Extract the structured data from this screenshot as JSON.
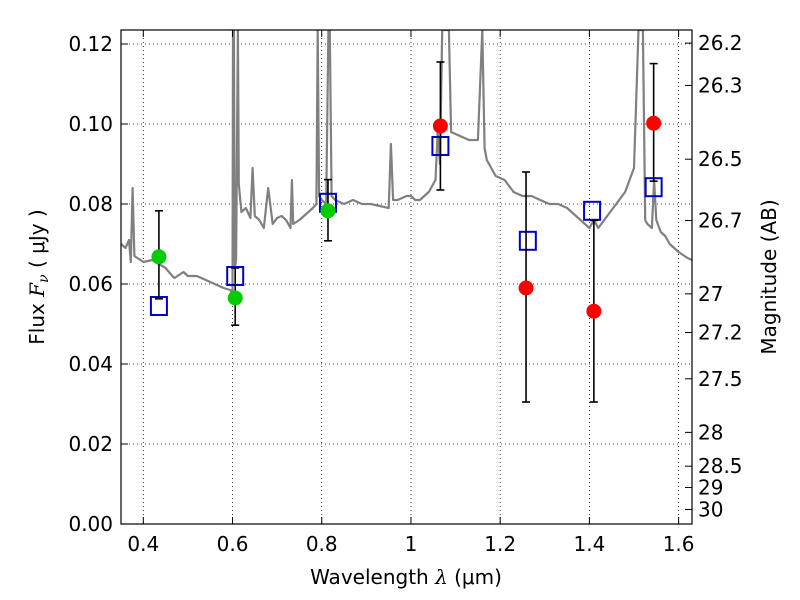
{
  "chart_data": {
    "type": "scatter",
    "xlabel": "Wavelength  λ (μm)",
    "ylabel": "Flux  F_ν  ( μJy )",
    "ylabel_parts": {
      "prefix": "Flux  ",
      "symbol": "F",
      "subscript": "ν",
      "suffix": "  ( μJy )"
    },
    "xlabel_parts": {
      "prefix": "Wavelength  ",
      "symbol": "λ",
      "suffix": " (μm)"
    },
    "y2label": "Magnitude (AB)",
    "xlim": [
      0.35,
      1.63
    ],
    "ylim": [
      0.0,
      0.1235
    ],
    "grid": true,
    "x_ticks": [
      "0.4",
      "0.6",
      "0.8",
      "1",
      "1.2",
      "1.4",
      "1.6"
    ],
    "y_ticks": [
      "0.00",
      "0.02",
      "0.04",
      "0.06",
      "0.08",
      "0.10",
      "0.12"
    ],
    "mag_ticks": [
      "26.2",
      "26.3",
      "26.5",
      "26.7",
      "27",
      "27.2",
      "27.5",
      "28",
      "28.5",
      "29",
      "30"
    ],
    "colors": {
      "green": "#00cc00",
      "red": "#ff0000",
      "model_marker": "#0000cc",
      "spectrum": "#808080",
      "errorbar": "#000000"
    },
    "observed": [
      {
        "x": 0.435,
        "y": 0.0668,
        "err_lo": 0.0105,
        "err_hi": 0.0115,
        "color": "green"
      },
      {
        "x": 0.606,
        "y": 0.0565,
        "err_lo": 0.0068,
        "err_hi": 0.0075,
        "color": "green"
      },
      {
        "x": 0.814,
        "y": 0.0783,
        "err_lo": 0.0075,
        "err_hi": 0.0078,
        "color": "green"
      },
      {
        "x": 1.066,
        "y": 0.0995,
        "err_lo": 0.016,
        "err_hi": 0.016,
        "color": "red"
      },
      {
        "x": 1.258,
        "y": 0.059,
        "err_lo": 0.0285,
        "err_hi": 0.029,
        "color": "red"
      },
      {
        "x": 1.41,
        "y": 0.0532,
        "err_lo": 0.0227,
        "err_hi": 0.0227,
        "color": "red"
      },
      {
        "x": 1.544,
        "y": 0.1002,
        "err_lo": 0.0145,
        "err_hi": 0.0149,
        "color": "red"
      }
    ],
    "model_points": [
      {
        "x": 0.435,
        "y": 0.0545
      },
      {
        "x": 0.606,
        "y": 0.062
      },
      {
        "x": 0.814,
        "y": 0.0803
      },
      {
        "x": 1.066,
        "y": 0.0945
      },
      {
        "x": 1.262,
        "y": 0.0708
      },
      {
        "x": 1.406,
        "y": 0.0783
      },
      {
        "x": 1.544,
        "y": 0.0842
      }
    ],
    "spectrum": [
      [
        0.35,
        0.07
      ],
      [
        0.36,
        0.069
      ],
      [
        0.368,
        0.071
      ],
      [
        0.372,
        0.0655
      ],
      [
        0.376,
        0.084
      ],
      [
        0.38,
        0.067
      ],
      [
        0.4,
        0.0655
      ],
      [
        0.42,
        0.066
      ],
      [
        0.435,
        0.065
      ],
      [
        0.45,
        0.064
      ],
      [
        0.465,
        0.062
      ],
      [
        0.47,
        0.0615
      ],
      [
        0.49,
        0.063
      ],
      [
        0.5,
        0.062
      ],
      [
        0.52,
        0.062
      ],
      [
        0.54,
        0.061
      ],
      [
        0.56,
        0.06
      ],
      [
        0.58,
        0.059
      ],
      [
        0.595,
        0.0585
      ],
      [
        0.6,
        0.0575
      ],
      [
        0.601,
        0.1235
      ],
      [
        0.603,
        0.1235
      ],
      [
        0.605,
        0.064
      ],
      [
        0.608,
        0.066
      ],
      [
        0.612,
        0.1235
      ],
      [
        0.614,
        0.085
      ],
      [
        0.62,
        0.078
      ],
      [
        0.63,
        0.079
      ],
      [
        0.64,
        0.0765
      ],
      [
        0.645,
        0.089
      ],
      [
        0.65,
        0.077
      ],
      [
        0.66,
        0.076
      ],
      [
        0.67,
        0.074
      ],
      [
        0.68,
        0.084
      ],
      [
        0.69,
        0.075
      ],
      [
        0.7,
        0.0765
      ],
      [
        0.71,
        0.077
      ],
      [
        0.72,
        0.076
      ],
      [
        0.73,
        0.074
      ],
      [
        0.733,
        0.086
      ],
      [
        0.736,
        0.075
      ],
      [
        0.75,
        0.076
      ],
      [
        0.76,
        0.077
      ],
      [
        0.77,
        0.078
      ],
      [
        0.78,
        0.079
      ],
      [
        0.788,
        0.08
      ],
      [
        0.791,
        0.1235
      ],
      [
        0.794,
        0.082
      ],
      [
        0.8,
        0.081
      ],
      [
        0.81,
        0.08
      ],
      [
        0.815,
        0.1235
      ],
      [
        0.818,
        0.1235
      ],
      [
        0.822,
        0.082
      ],
      [
        0.83,
        0.081
      ],
      [
        0.85,
        0.08
      ],
      [
        0.87,
        0.081
      ],
      [
        0.89,
        0.08
      ],
      [
        0.91,
        0.08
      ],
      [
        0.93,
        0.0795
      ],
      [
        0.95,
        0.079
      ],
      [
        0.955,
        0.095
      ],
      [
        0.96,
        0.081
      ],
      [
        0.97,
        0.081
      ],
      [
        0.99,
        0.082
      ],
      [
        1.0,
        0.082
      ],
      [
        1.01,
        0.081
      ],
      [
        1.02,
        0.081
      ],
      [
        1.03,
        0.082
      ],
      [
        1.04,
        0.083
      ],
      [
        1.055,
        0.086
      ],
      [
        1.06,
        0.098
      ],
      [
        1.065,
        0.09
      ],
      [
        1.07,
        0.1235
      ],
      [
        1.085,
        0.1235
      ],
      [
        1.09,
        0.098
      ],
      [
        1.11,
        0.097
      ],
      [
        1.13,
        0.096
      ],
      [
        1.15,
        0.096
      ],
      [
        1.16,
        0.1235
      ],
      [
        1.165,
        0.094
      ],
      [
        1.17,
        0.091
      ],
      [
        1.19,
        0.087
      ],
      [
        1.21,
        0.086
      ],
      [
        1.23,
        0.083
      ],
      [
        1.25,
        0.082
      ],
      [
        1.27,
        0.082
      ],
      [
        1.29,
        0.081
      ],
      [
        1.31,
        0.08
      ],
      [
        1.33,
        0.08
      ],
      [
        1.35,
        0.079
      ],
      [
        1.37,
        0.077
      ],
      [
        1.39,
        0.075
      ],
      [
        1.4,
        0.074
      ],
      [
        1.41,
        0.076
      ],
      [
        1.42,
        0.074
      ],
      [
        1.44,
        0.077
      ],
      [
        1.46,
        0.08
      ],
      [
        1.48,
        0.083
      ],
      [
        1.5,
        0.089
      ],
      [
        1.51,
        0.1235
      ],
      [
        1.52,
        0.1235
      ],
      [
        1.525,
        0.076
      ],
      [
        1.53,
        0.075
      ],
      [
        1.54,
        0.074
      ],
      [
        1.545,
        0.086
      ],
      [
        1.55,
        0.076
      ],
      [
        1.56,
        0.073
      ],
      [
        1.57,
        0.072
      ],
      [
        1.58,
        0.07
      ],
      [
        1.59,
        0.069
      ],
      [
        1.6,
        0.068
      ],
      [
        1.62,
        0.0665
      ],
      [
        1.63,
        0.066
      ]
    ]
  }
}
